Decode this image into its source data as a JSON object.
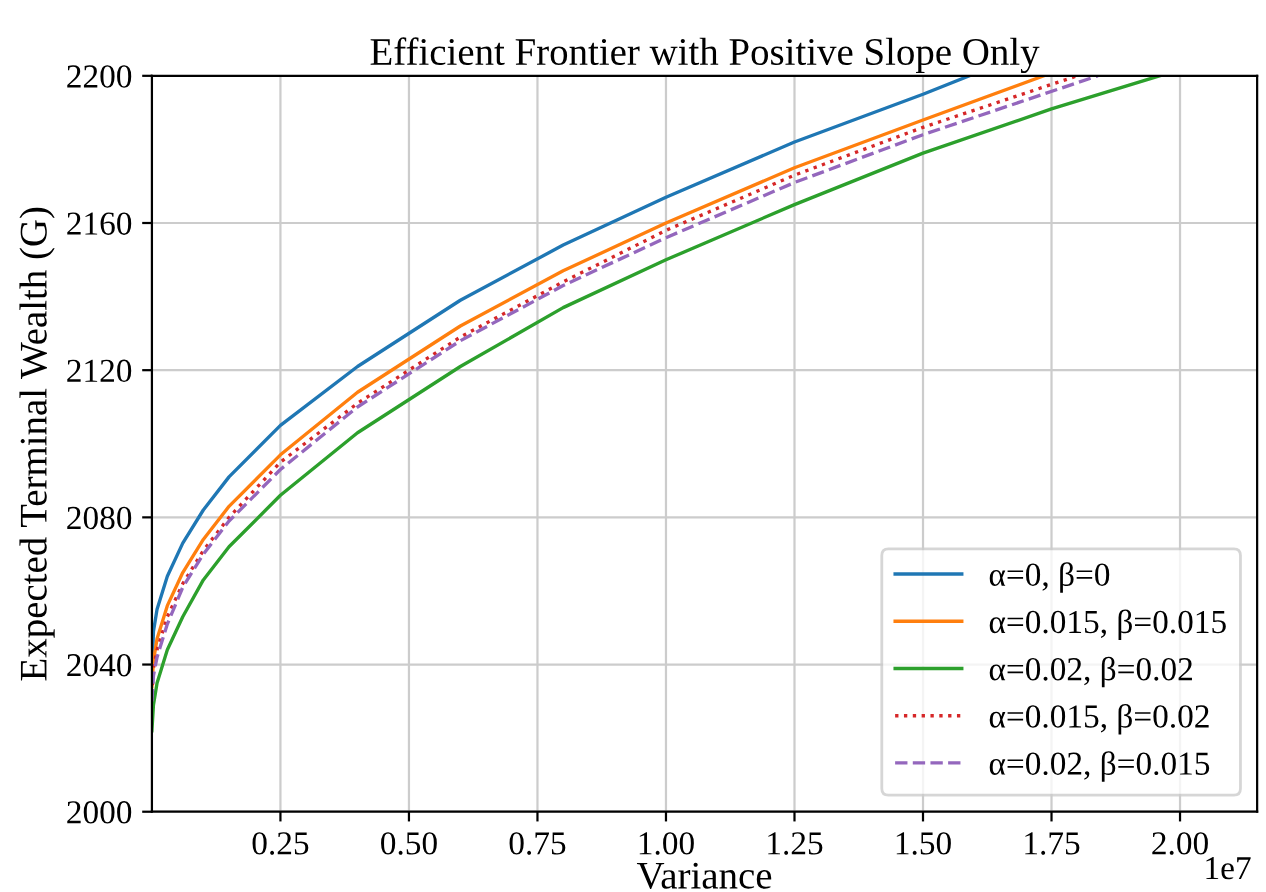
{
  "chart_data": {
    "type": "line",
    "title": "Efficient Frontier with Positive Slope Only",
    "xlabel": "Variance",
    "ylabel": "Expected Terminal Wealth (G)",
    "annotations": [
      "1e7"
    ],
    "xlim": [
      0,
      2.15
    ],
    "ylim": [
      2000,
      2200
    ],
    "xticks": [
      0.25,
      {
        "value": 0.5,
        "label": "0.50"
      },
      0.75,
      {
        "value": 1,
        "label": "1.00"
      },
      1.25,
      {
        "value": 1.5,
        "label": "1.50"
      },
      1.75,
      {
        "value": 2,
        "label": "2.00"
      }
    ],
    "yticks": [
      2000,
      2040,
      2080,
      2120,
      2160,
      2200
    ],
    "grid": true,
    "legend": "bottom right",
    "series": [
      {
        "name": "α=0, β=0",
        "color": "#1f77b4",
        "line_style": "solid",
        "x": [
          0,
          0.003,
          0.01,
          0.03,
          0.06,
          0.1,
          0.15,
          0.25,
          0.4,
          0.6,
          0.8,
          1.0,
          1.25,
          1.5,
          1.59
        ],
        "values": [
          2038,
          2049,
          2055,
          2064,
          2073,
          2082,
          2091,
          2105,
          2121,
          2139,
          2154,
          2167,
          2182,
          2195,
          2200
        ]
      },
      {
        "name": "α=0.015, β=0.015",
        "color": "#ff7f0e",
        "line_style": "solid",
        "x": [
          0,
          0.003,
          0.01,
          0.03,
          0.06,
          0.1,
          0.15,
          0.25,
          0.4,
          0.6,
          0.8,
          1.0,
          1.25,
          1.5,
          1.735
        ],
        "values": [
          2034,
          2041,
          2047,
          2056,
          2065,
          2074,
          2083,
          2097,
          2114,
          2132,
          2147,
          2160,
          2175,
          2188,
          2200
        ]
      },
      {
        "name": "α=0.02, β=0.02",
        "color": "#2ca02c",
        "line_style": "solid",
        "x": [
          0,
          0.003,
          0.01,
          0.03,
          0.06,
          0.1,
          0.15,
          0.25,
          0.4,
          0.6,
          0.8,
          1.0,
          1.25,
          1.5,
          1.75,
          1.96
        ],
        "values": [
          2022,
          2029,
          2035,
          2044,
          2053,
          2063,
          2072,
          2086,
          2103,
          2121,
          2137,
          2150,
          2165,
          2179,
          2191,
          2200
        ]
      },
      {
        "name": "α=0.015, β=0.02",
        "color": "#d62728",
        "line_style": "dotted",
        "x": [
          0,
          0.003,
          0.01,
          0.03,
          0.06,
          0.1,
          0.15,
          0.25,
          0.4,
          0.6,
          0.8,
          1.0,
          1.25,
          1.5,
          1.8
        ],
        "values": [
          2032,
          2039,
          2044,
          2053,
          2062,
          2071,
          2080,
          2095,
          2111,
          2129,
          2144,
          2158,
          2173,
          2186,
          2200
        ]
      },
      {
        "name": "α=0.02, β=0.015",
        "color": "#9467bd",
        "line_style": "dashed",
        "x": [
          0,
          0.003,
          0.01,
          0.03,
          0.06,
          0.1,
          0.15,
          0.25,
          0.4,
          0.6,
          0.8,
          1.0,
          1.25,
          1.5,
          1.84
        ],
        "values": [
          2030,
          2037,
          2042,
          2051,
          2061,
          2070,
          2079,
          2093,
          2110,
          2128,
          2143,
          2156,
          2171,
          2184,
          2200
        ]
      }
    ]
  }
}
